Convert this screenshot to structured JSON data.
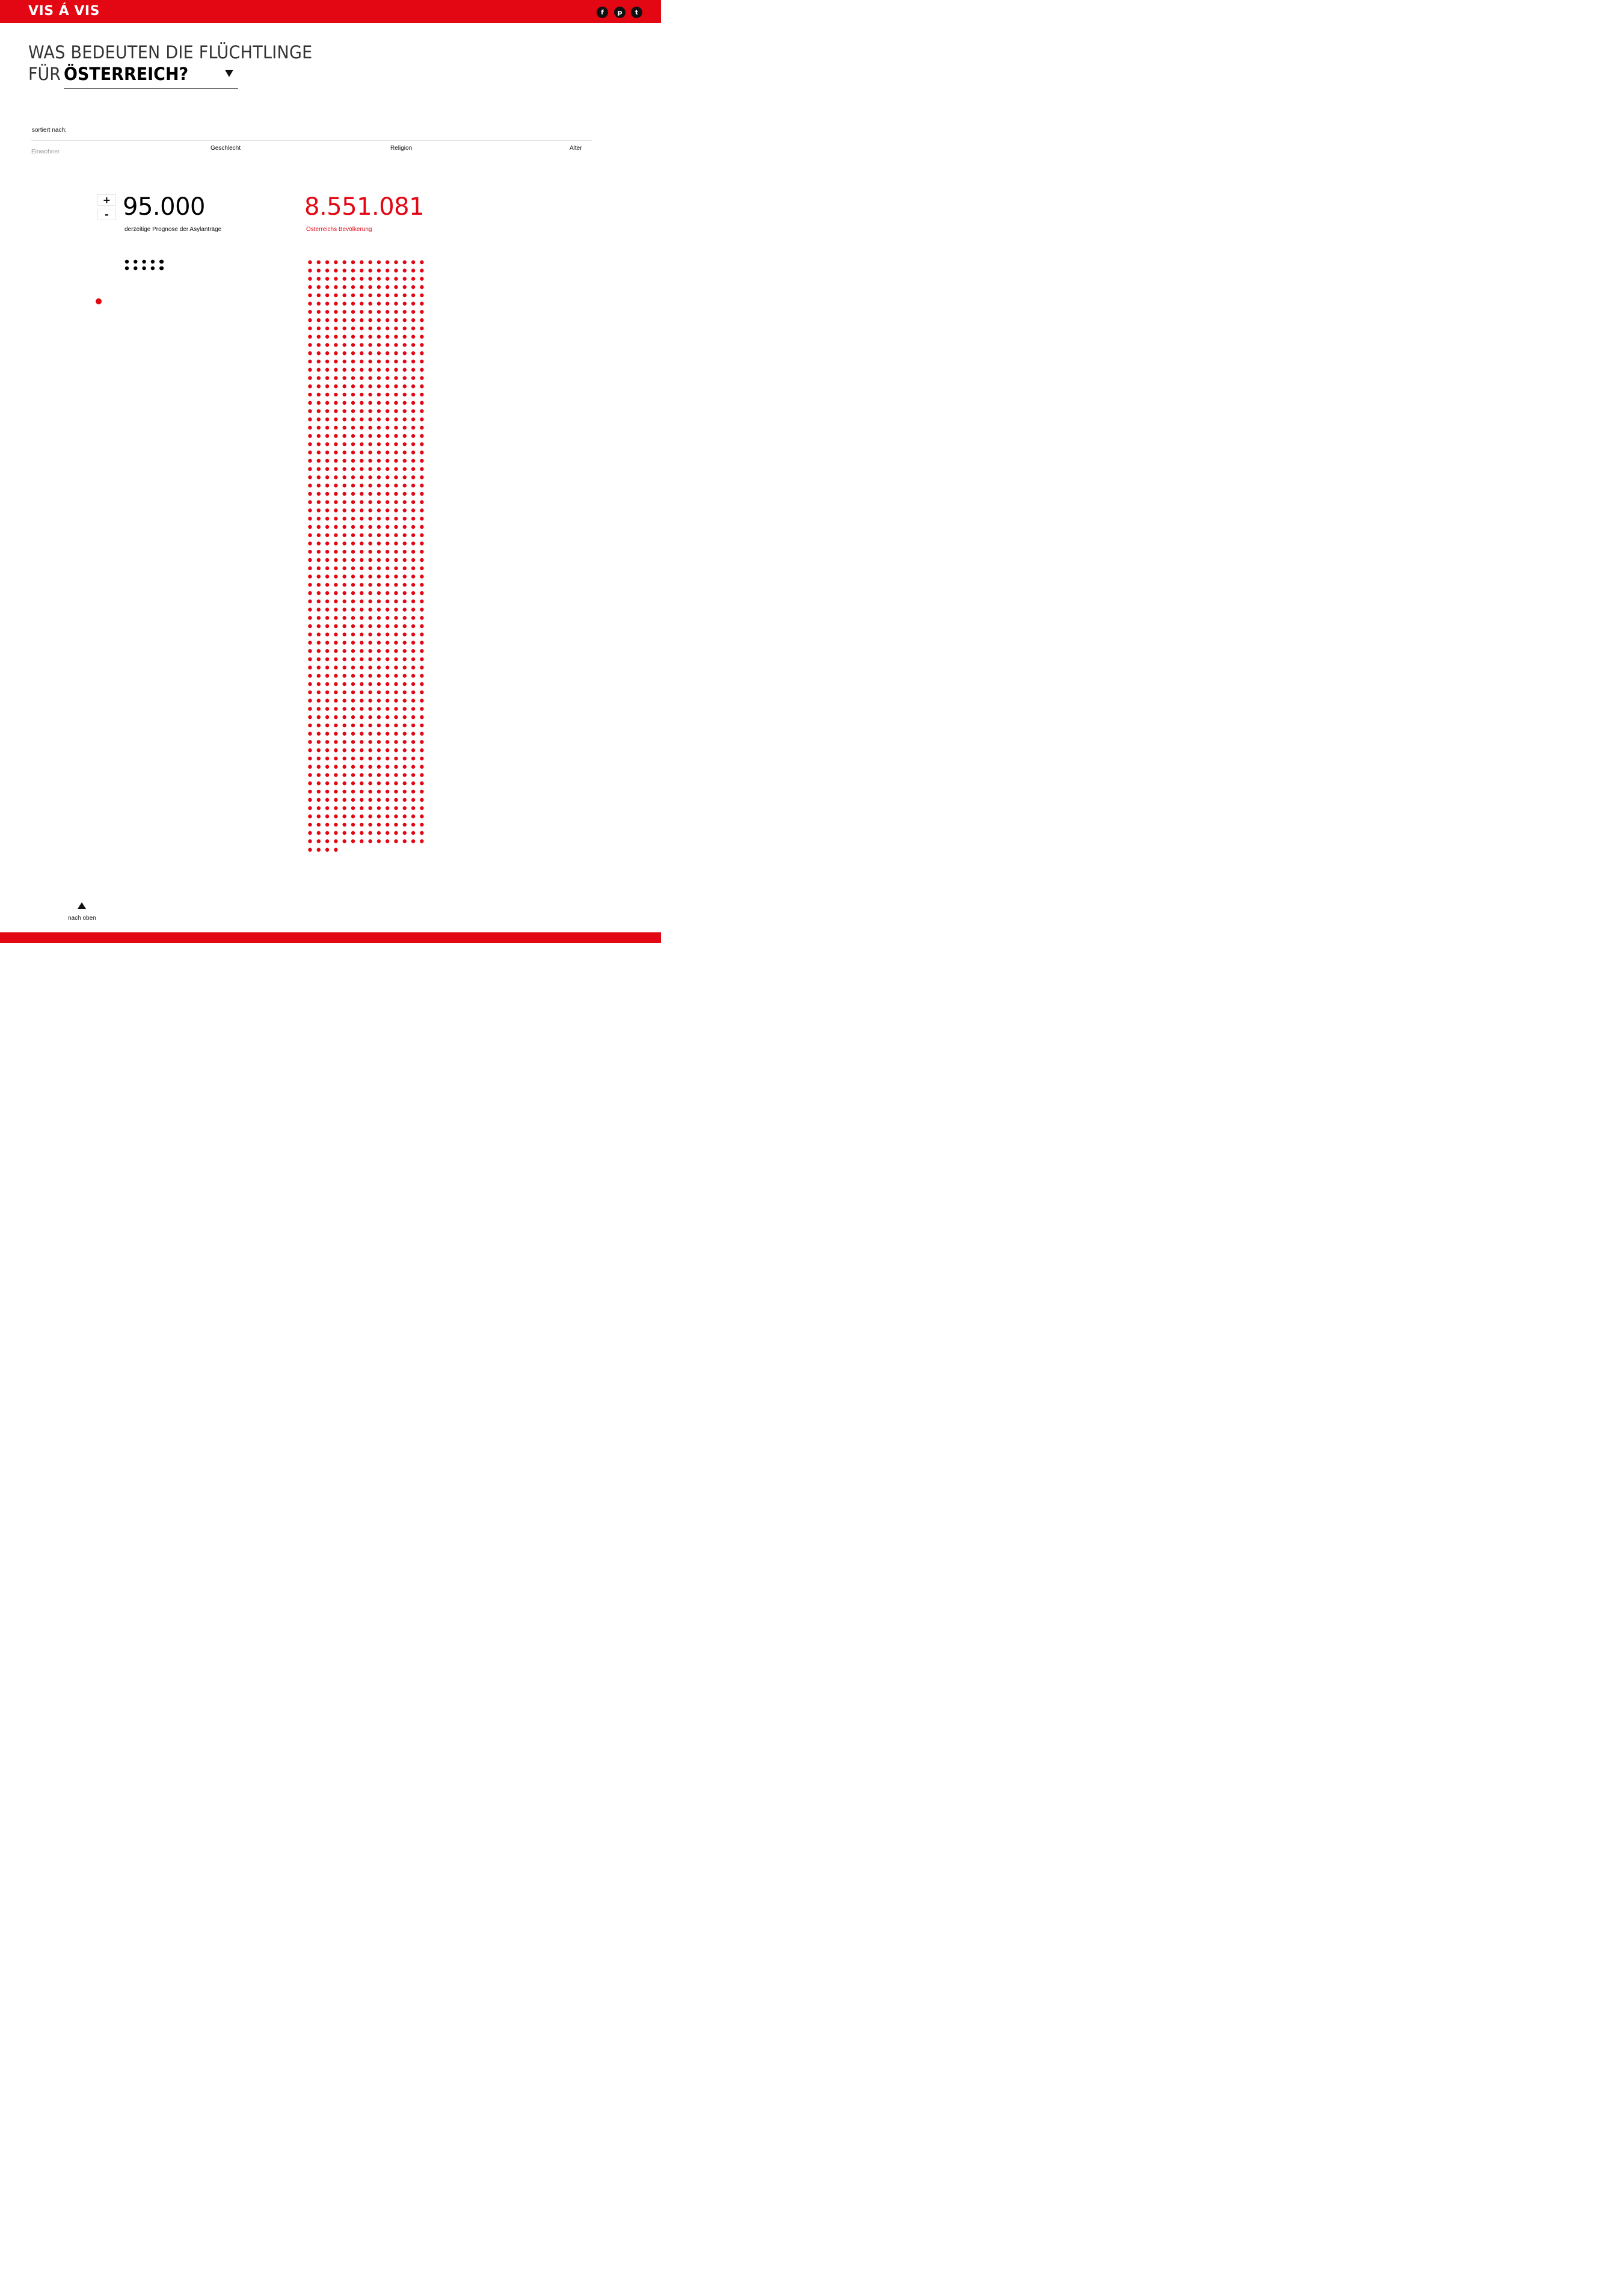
{
  "header": {
    "brand": "VIS Á VIS",
    "social": [
      {
        "name": "facebook",
        "icon": "facebook-icon",
        "glyph": "f"
      },
      {
        "name": "pinterest",
        "icon": "pinterest-icon",
        "glyph": "p"
      },
      {
        "name": "twitter",
        "icon": "twitter-icon",
        "glyph": "t"
      }
    ]
  },
  "headline": {
    "line1": "WAS BEDEUTEN DIE FLÜCHTLINGE",
    "line2_prefix": "FÜR",
    "country": "ÖSTERREICH?"
  },
  "sort": {
    "label": "sortiert nach:",
    "options": [
      "Einwohner",
      "Geschlecht",
      "Religion",
      "Alter"
    ],
    "active": "Einwohner"
  },
  "refugees": {
    "plus_label": "+",
    "minus_label": "-",
    "value": "95.000",
    "caption": "derzeitige Prognose der Asylanträge"
  },
  "population": {
    "value": "8.551.081",
    "caption": "Österreichs Bevölkerung"
  },
  "footer": {
    "back_to_top": "nach oben"
  },
  "colors": {
    "accent": "#e30613",
    "text": "#111111",
    "muted": "#9a9a9a"
  }
}
